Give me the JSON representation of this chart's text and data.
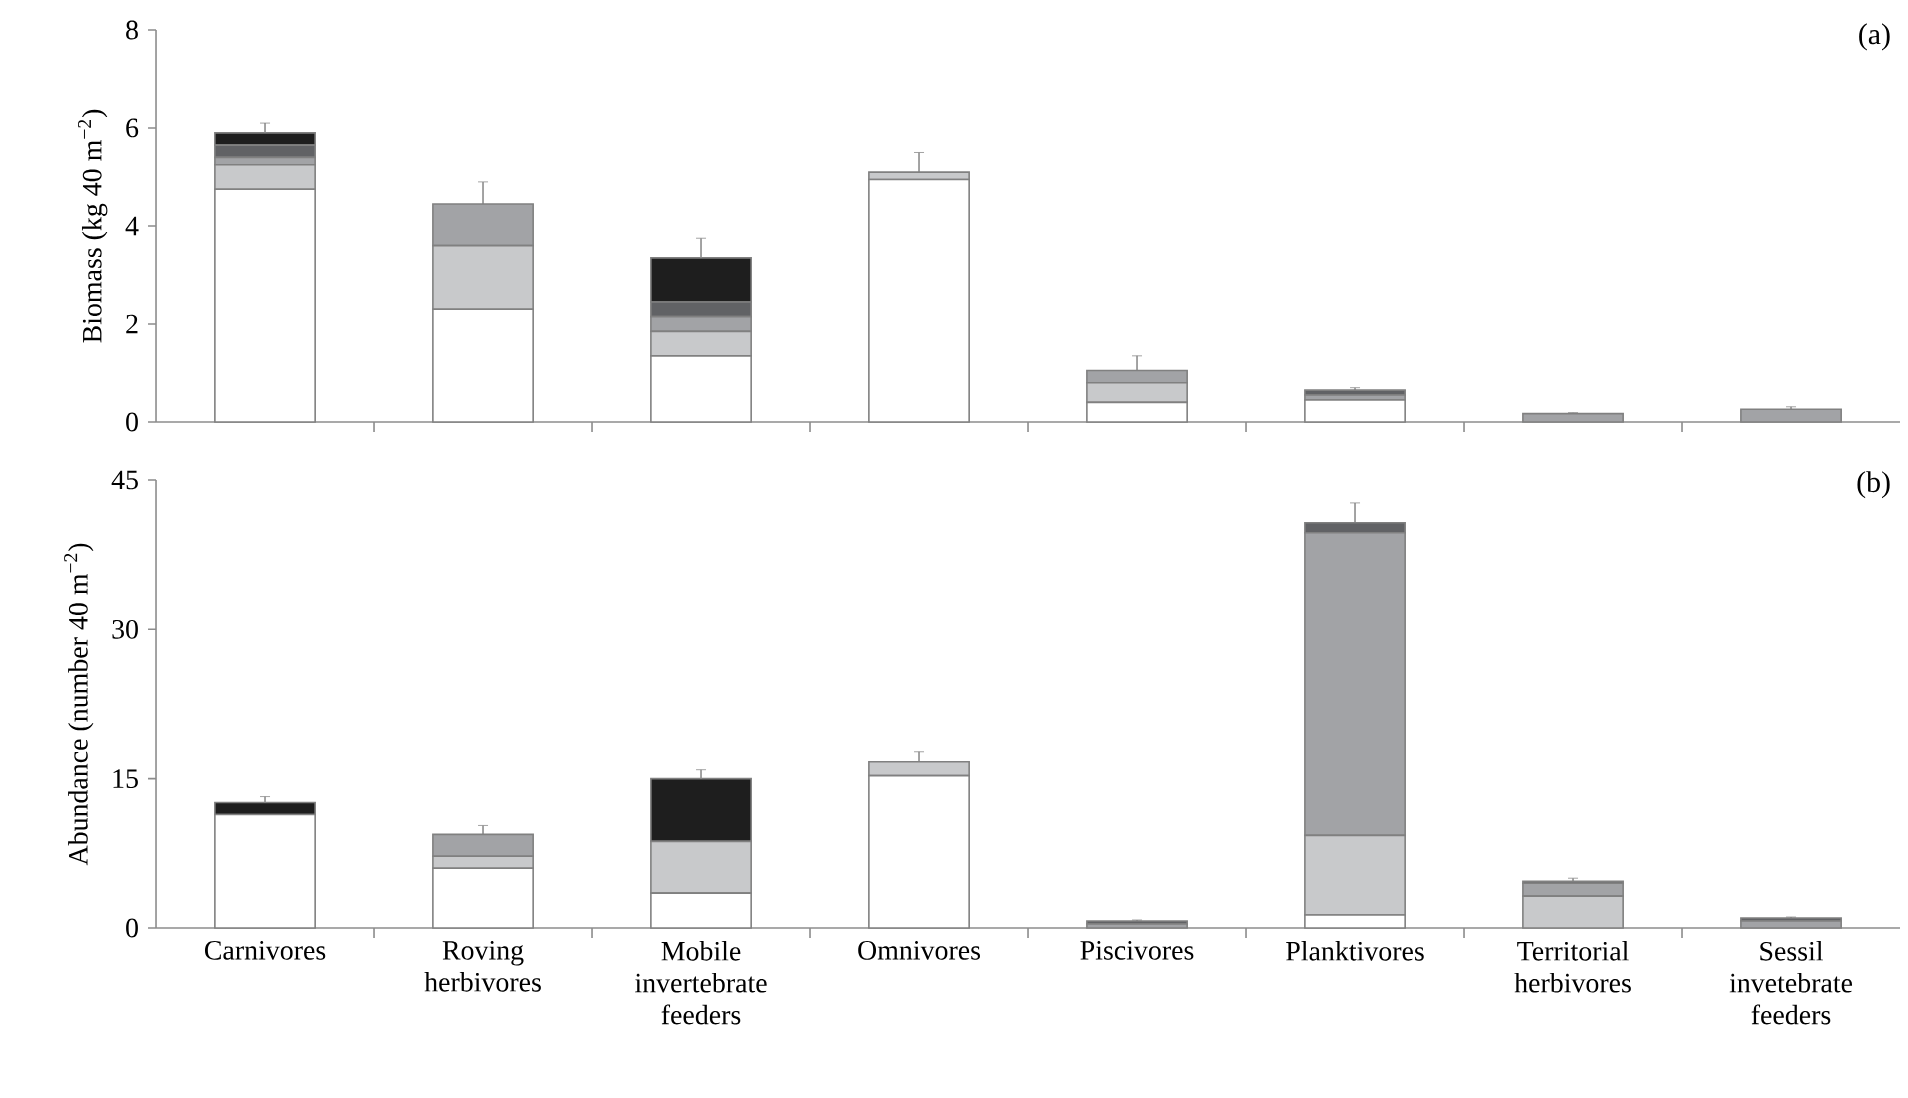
{
  "chart_data": [
    {
      "type": "bar",
      "stacked": true,
      "annotations": [
        "(a)"
      ],
      "ylabel": "Biomass (kg 40 m$^{−2}$)",
      "categories": [
        null,
        null,
        null,
        null,
        null,
        null,
        null,
        null
      ],
      "ylim": [
        0,
        8
      ],
      "yticks": [
        0,
        2,
        4,
        6,
        8
      ],
      "tick_labels": "y",
      "series": [
        {
          "color": "#ffffff",
          "values": [
            4.75,
            2.3,
            1.35,
            4.95,
            0.4,
            0.45,
            0,
            0
          ]
        },
        {
          "color": "#c8c9cb",
          "values": [
            0.5,
            1.3,
            0.5,
            0.15,
            0.4,
            0,
            0,
            0
          ]
        },
        {
          "color": "#a2a3a6",
          "values": [
            0.15,
            0.85,
            0.3,
            0,
            0.25,
            0.1,
            0.17,
            0.26
          ]
        },
        {
          "color": "#616265",
          "values": [
            0.25,
            0,
            0.3,
            0,
            0,
            0.1,
            0,
            0
          ]
        },
        {
          "color": "#1e1e1e",
          "values": [
            0.25,
            0,
            0.9,
            0,
            0,
            0,
            0,
            0
          ],
          "errors": [
            0.2,
            0.45,
            0.4,
            0.4,
            0.3,
            0.05,
            0.02,
            0.05
          ]
        }
      ]
    },
    {
      "type": "bar",
      "stacked": true,
      "annotations": [
        "(b)"
      ],
      "ylabel": "Abundance (number 40 m$^{−2}$)",
      "categories": [
        "Carnivores",
        "Roving herbivores",
        "Mobile invertebrate feeders",
        "Omnivores",
        "Piscivores",
        "Planktivores",
        "Territorial herbivores",
        "Sessil invetebrate feeders"
      ],
      "ylim": [
        0,
        45
      ],
      "yticks": [
        0,
        15,
        30,
        45
      ],
      "series": [
        {
          "color": "#ffffff",
          "values": [
            11.4,
            6.0,
            3.5,
            15.3,
            0,
            1.3,
            0,
            0
          ]
        },
        {
          "color": "#c8c9cb",
          "values": [
            0,
            1.2,
            5.2,
            1.4,
            0,
            8.0,
            3.2,
            0
          ]
        },
        {
          "color": "#a2a3a6",
          "values": [
            0,
            2.2,
            0,
            0,
            0.4,
            30.4,
            1.3,
            0.7
          ]
        },
        {
          "color": "#616265",
          "values": [
            0,
            0,
            0,
            0,
            0.3,
            1.0,
            0.2,
            0.3
          ]
        },
        {
          "color": "#1e1e1e",
          "values": [
            1.2,
            0,
            6.3,
            0,
            0,
            0,
            0,
            0
          ],
          "errors": [
            0.6,
            0.9,
            0.9,
            1.0,
            0.1,
            2.0,
            0.3,
            0.1
          ]
        }
      ]
    }
  ]
}
